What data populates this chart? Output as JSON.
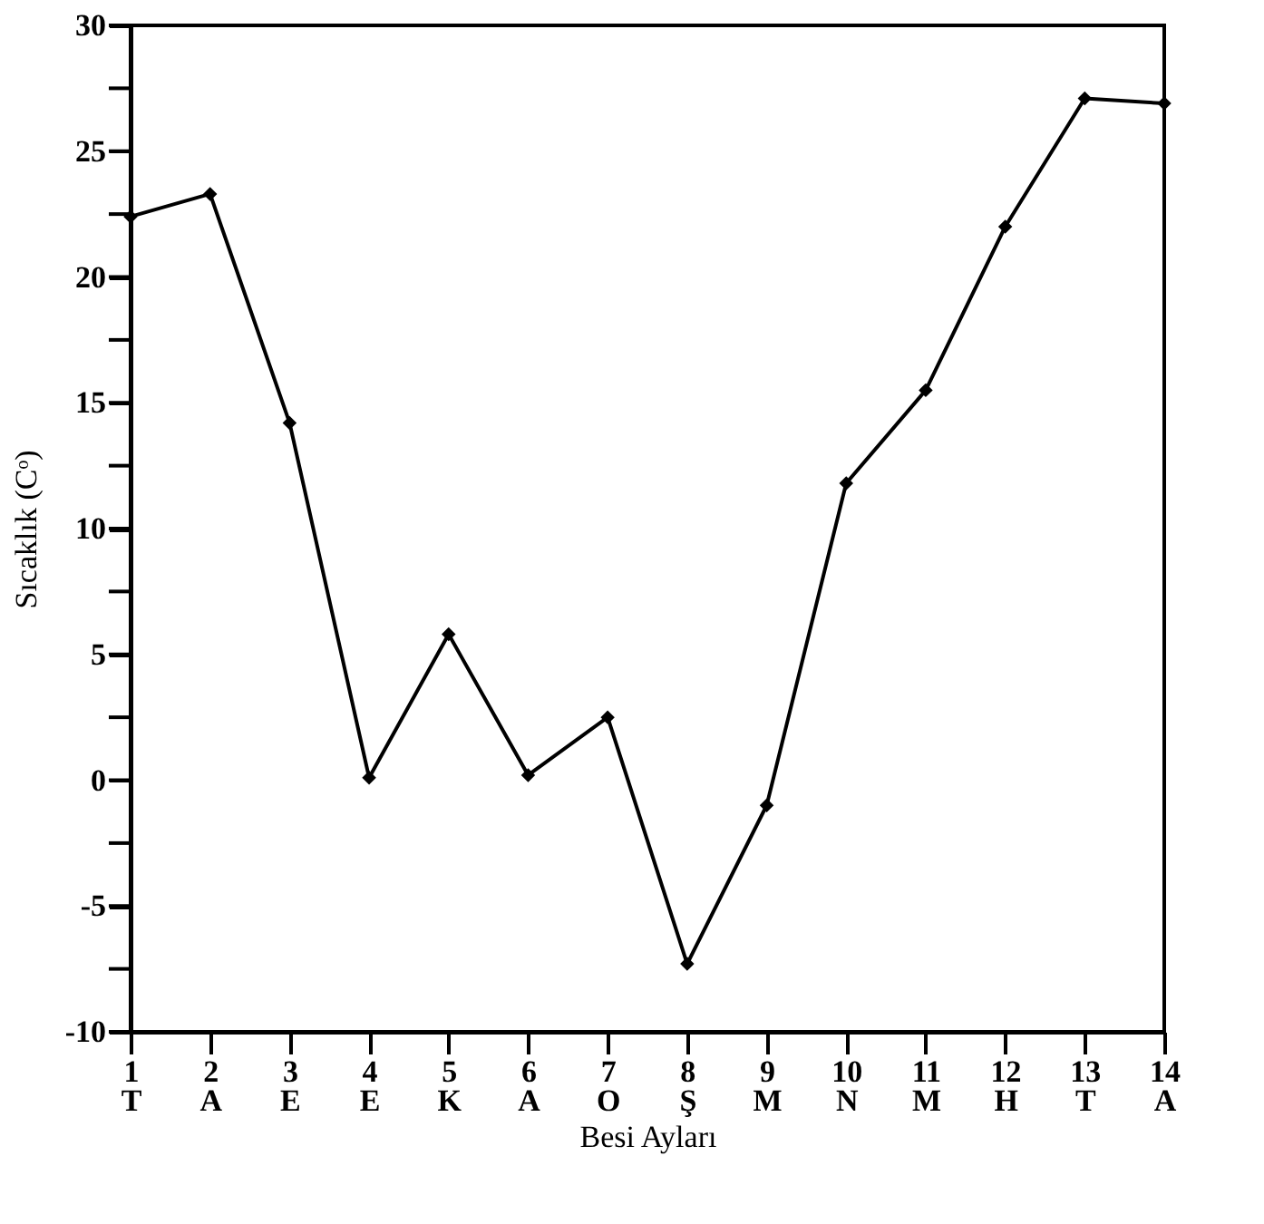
{
  "chart_data": {
    "type": "line",
    "xlabel": "Besi Ayları",
    "ylabel": "Sıcaklık (Cᵒ)",
    "categories": [
      "1\nT",
      "2\nA",
      "3\nE",
      "4\nE",
      "5\nK",
      "6\nA",
      "7\nO",
      "8\nŞ",
      "9\nM",
      "10\nN",
      "11\nM",
      "12\nH",
      "13\nT",
      "14\nA"
    ],
    "values": [
      22.4,
      23.3,
      14.2,
      0.1,
      5.8,
      0.2,
      2.5,
      -7.3,
      -1.0,
      11.8,
      15.5,
      22.0,
      27.1,
      26.9
    ],
    "color": "#000000",
    "marker": "diamond",
    "line_style": "solid",
    "ylim": [
      -10,
      30
    ],
    "yticks": [
      -10,
      {
        "value": -7.5,
        "label": null
      },
      -5,
      {
        "value": -2.5,
        "label": null
      },
      0,
      {
        "value": 2.5,
        "label": null
      },
      5,
      {
        "value": 7.5,
        "label": null
      },
      10,
      {
        "value": 12.5,
        "label": null
      },
      15,
      {
        "value": 17.5,
        "label": null
      },
      20,
      {
        "value": 22.5,
        "label": null
      },
      25,
      {
        "value": 27.5,
        "label": null
      },
      30
    ],
    "grid": false
  }
}
